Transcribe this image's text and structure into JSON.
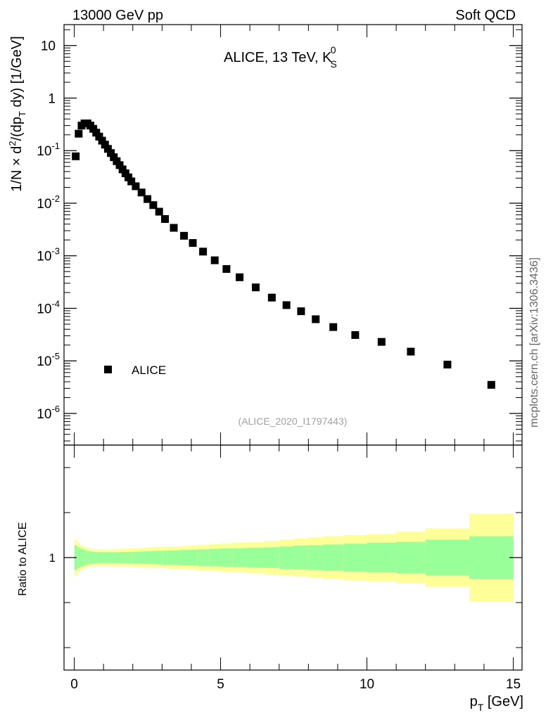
{
  "header": {
    "left": "13000 GeV pp",
    "right": "Soft QCD",
    "side_label": "mcplots.cern.ch [arXiv:1306.3436]"
  },
  "chart_data": [
    {
      "type": "scatter",
      "panel": "main",
      "title": "ALICE, 13 TeV, K",
      "title_sub": "S",
      "title_sup": "0",
      "ylabel": "1/N × d²/(dp_T dy) [1/GeV]",
      "yscale": "log",
      "ylim": [
        2.5e-07,
        25
      ],
      "xlim": [
        -0.35,
        15.3
      ],
      "watermark": "(ALICE_2020_I1797443)",
      "legend": {
        "label": "ALICE",
        "position": "bottom-left"
      },
      "y_ticks": [
        {
          "v": 1e-06,
          "base": "10",
          "exp": "-6"
        },
        {
          "v": 1e-05,
          "base": "10",
          "exp": "-5"
        },
        {
          "v": 0.0001,
          "base": "10",
          "exp": "-4"
        },
        {
          "v": 0.001,
          "base": "10",
          "exp": "-3"
        },
        {
          "v": 0.01,
          "base": "10",
          "exp": "-2"
        },
        {
          "v": 0.1,
          "base": "10",
          "exp": "-1"
        },
        {
          "v": 1,
          "base": "1",
          "exp": ""
        },
        {
          "v": 10,
          "base": "10",
          "exp": ""
        }
      ],
      "series": [
        {
          "name": "ALICE",
          "x": [
            0.05,
            0.15,
            0.25,
            0.35,
            0.45,
            0.55,
            0.65,
            0.75,
            0.85,
            0.95,
            1.05,
            1.15,
            1.25,
            1.35,
            1.45,
            1.55,
            1.65,
            1.75,
            1.85,
            1.95,
            2.1,
            2.3,
            2.5,
            2.7,
            2.9,
            3.1,
            3.4,
            3.75,
            4.05,
            4.4,
            4.8,
            5.2,
            5.65,
            6.2,
            6.75,
            7.25,
            7.75,
            8.25,
            8.85,
            9.6,
            10.5,
            11.5,
            12.75,
            14.25
          ],
          "y": [
            0.078,
            0.21,
            0.3,
            0.33,
            0.33,
            0.3,
            0.26,
            0.22,
            0.185,
            0.155,
            0.13,
            0.108,
            0.09,
            0.075,
            0.063,
            0.053,
            0.044,
            0.037,
            0.031,
            0.026,
            0.021,
            0.016,
            0.012,
            0.0092,
            0.0069,
            0.005,
            0.0034,
            0.0024,
            0.00175,
            0.0012,
            0.00082,
            0.00056,
            0.00039,
            0.00025,
            0.00016,
            0.000115,
            8.8e-05,
            6.2e-05,
            4.4e-05,
            3.1e-05,
            2.3e-05,
            1.5e-05,
            8.5e-06,
            3.5e-06
          ]
        }
      ]
    },
    {
      "type": "area",
      "panel": "ratio",
      "ylabel": "Ratio to ALICE",
      "xlabel": "p",
      "xlabel_sub": "T",
      "xlabel_unit": " [GeV]",
      "xlim": [
        -0.35,
        15.3
      ],
      "ylim": [
        0.5,
        1.5
      ],
      "x_ticks": [
        {
          "v": 0,
          "label": "0"
        },
        {
          "v": 5,
          "label": "5"
        },
        {
          "v": 10,
          "label": "10"
        },
        {
          "v": 15,
          "label": "15"
        }
      ],
      "y_ticks": [
        {
          "v": 1,
          "label": "1"
        }
      ],
      "bands": {
        "edges": [
          0.0,
          0.1,
          0.2,
          0.3,
          0.4,
          0.5,
          0.6,
          0.7,
          0.8,
          0.9,
          1.0,
          1.1,
          1.2,
          1.3,
          1.4,
          1.5,
          1.6,
          1.7,
          1.8,
          1.9,
          2.0,
          2.2,
          2.4,
          2.6,
          2.8,
          3.0,
          3.2,
          3.6,
          3.9,
          4.2,
          4.6,
          5.0,
          5.4,
          5.9,
          6.5,
          7.0,
          7.5,
          8.0,
          8.5,
          9.2,
          10.0,
          11.0,
          12.0,
          13.5,
          15.0
        ],
        "stat_half": [
          0.055,
          0.045,
          0.04,
          0.035,
          0.03,
          0.028,
          0.026,
          0.025,
          0.024,
          0.024,
          0.024,
          0.024,
          0.024,
          0.024,
          0.024,
          0.024,
          0.025,
          0.025,
          0.025,
          0.025,
          0.026,
          0.027,
          0.028,
          0.029,
          0.03,
          0.031,
          0.032,
          0.034,
          0.035,
          0.037,
          0.039,
          0.041,
          0.042,
          0.044,
          0.046,
          0.05,
          0.053,
          0.055,
          0.058,
          0.062,
          0.066,
          0.07,
          0.08,
          0.095
        ],
        "total_half": [
          0.08,
          0.065,
          0.055,
          0.048,
          0.043,
          0.04,
          0.038,
          0.037,
          0.037,
          0.037,
          0.037,
          0.037,
          0.037,
          0.038,
          0.038,
          0.039,
          0.039,
          0.04,
          0.04,
          0.041,
          0.042,
          0.043,
          0.045,
          0.046,
          0.047,
          0.048,
          0.05,
          0.052,
          0.054,
          0.057,
          0.06,
          0.063,
          0.066,
          0.07,
          0.075,
          0.08,
          0.085,
          0.09,
          0.095,
          0.1,
          0.105,
          0.115,
          0.13,
          0.195
        ],
        "stat_color": "#99ff99",
        "total_color": "#ffff99"
      }
    }
  ]
}
